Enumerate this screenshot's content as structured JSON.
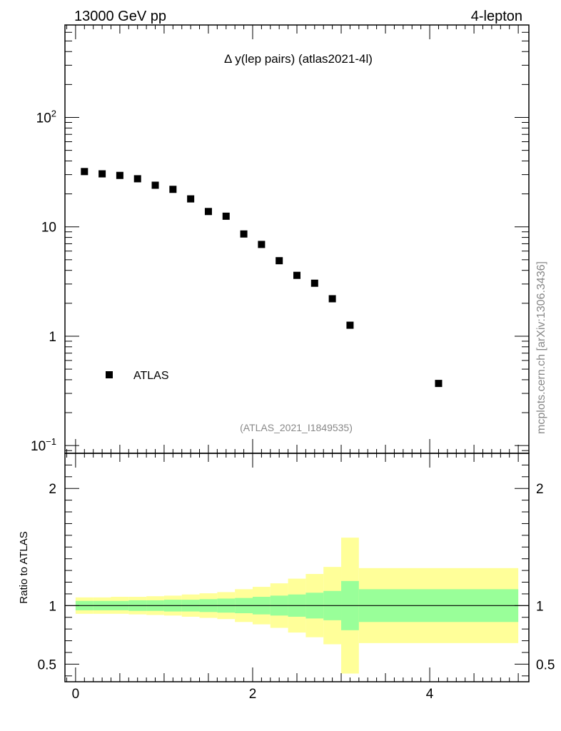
{
  "header": {
    "left": "13000 GeV pp",
    "right": "4-lepton"
  },
  "plot_title": "Δ y(lep pairs) (atlas2021-4l)",
  "watermark": "mcplots.cern.ch [arXiv:1306.3436]",
  "analysis_id": "(ATLAS_2021_I1849535)",
  "legend": {
    "label": "ATLAS"
  },
  "chart_data": [
    {
      "type": "scatter",
      "name": "main",
      "yscale": "log",
      "xlim": [
        -0.12,
        5.12
      ],
      "ylim": [
        0.085,
        700
      ],
      "yticks": [
        {
          "value": 0.1,
          "base": "10",
          "exp": "−1"
        },
        {
          "value": 1,
          "label": "1"
        },
        {
          "value": 10,
          "label": "10"
        },
        {
          "value": 100,
          "base": "10",
          "exp": "2"
        }
      ],
      "legend_position": "bottom-left",
      "series": [
        {
          "name": "ATLAS",
          "marker": "square",
          "color": "#000000",
          "x": [
            0.1,
            0.3,
            0.5,
            0.7,
            0.9,
            1.1,
            1.3,
            1.5,
            1.7,
            1.9,
            2.1,
            2.3,
            2.5,
            2.7,
            2.9,
            3.1,
            4.1
          ],
          "y": [
            32,
            30.5,
            29.5,
            27.5,
            24,
            22,
            18,
            13.8,
            12.5,
            8.6,
            6.9,
            4.9,
            3.6,
            3.05,
            2.2,
            1.26,
            0.37
          ]
        }
      ]
    },
    {
      "type": "area",
      "name": "ratio",
      "ylabel": "Ratio to ATLAS",
      "xlim": [
        -0.12,
        5.12
      ],
      "ylim": [
        0.35,
        2.3
      ],
      "xticks": [
        0,
        2,
        4
      ],
      "yticks": [
        0.5,
        1,
        2
      ],
      "reference_line": 1,
      "colors": {
        "inner_band": "#99ff99",
        "outer_band": "#ffff99",
        "line": "#000000"
      },
      "bins": [
        {
          "lo": 0.0,
          "hi": 0.2,
          "inner": [
            0.96,
            1.04
          ],
          "outer": [
            0.93,
            1.07
          ]
        },
        {
          "lo": 0.2,
          "hi": 0.4,
          "inner": [
            0.96,
            1.04
          ],
          "outer": [
            0.93,
            1.07
          ]
        },
        {
          "lo": 0.4,
          "hi": 0.6,
          "inner": [
            0.96,
            1.04
          ],
          "outer": [
            0.93,
            1.075
          ]
        },
        {
          "lo": 0.6,
          "hi": 0.8,
          "inner": [
            0.955,
            1.045
          ],
          "outer": [
            0.925,
            1.075
          ]
        },
        {
          "lo": 0.8,
          "hi": 1.0,
          "inner": [
            0.955,
            1.045
          ],
          "outer": [
            0.92,
            1.08
          ]
        },
        {
          "lo": 1.0,
          "hi": 1.2,
          "inner": [
            0.95,
            1.05
          ],
          "outer": [
            0.915,
            1.085
          ]
        },
        {
          "lo": 1.2,
          "hi": 1.4,
          "inner": [
            0.95,
            1.05
          ],
          "outer": [
            0.905,
            1.095
          ]
        },
        {
          "lo": 1.4,
          "hi": 1.6,
          "inner": [
            0.945,
            1.055
          ],
          "outer": [
            0.895,
            1.105
          ]
        },
        {
          "lo": 1.6,
          "hi": 1.8,
          "inner": [
            0.94,
            1.06
          ],
          "outer": [
            0.885,
            1.115
          ]
        },
        {
          "lo": 1.8,
          "hi": 2.0,
          "inner": [
            0.935,
            1.065
          ],
          "outer": [
            0.86,
            1.14
          ]
        },
        {
          "lo": 2.0,
          "hi": 2.2,
          "inner": [
            0.925,
            1.075
          ],
          "outer": [
            0.84,
            1.16
          ]
        },
        {
          "lo": 2.2,
          "hi": 2.4,
          "inner": [
            0.915,
            1.085
          ],
          "outer": [
            0.81,
            1.19
          ]
        },
        {
          "lo": 2.4,
          "hi": 2.6,
          "inner": [
            0.905,
            1.095
          ],
          "outer": [
            0.77,
            1.23
          ]
        },
        {
          "lo": 2.6,
          "hi": 2.8,
          "inner": [
            0.89,
            1.11
          ],
          "outer": [
            0.73,
            1.27
          ]
        },
        {
          "lo": 2.8,
          "hi": 3.0,
          "inner": [
            0.875,
            1.125
          ],
          "outer": [
            0.67,
            1.33
          ]
        },
        {
          "lo": 3.0,
          "hi": 3.2,
          "inner": [
            0.79,
            1.21
          ],
          "outer": [
            0.42,
            1.58
          ]
        },
        {
          "lo": 3.2,
          "hi": 5.0,
          "inner": [
            0.86,
            1.14
          ],
          "outer": [
            0.68,
            1.32
          ]
        }
      ]
    }
  ]
}
